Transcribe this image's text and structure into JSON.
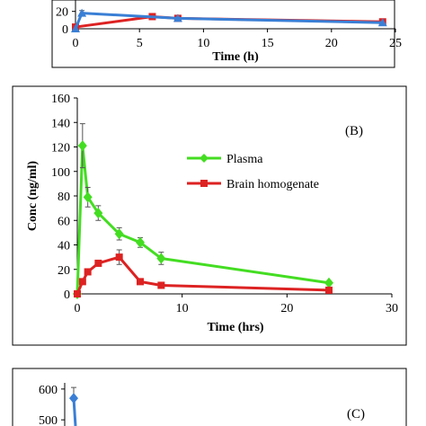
{
  "chart_data": [
    {
      "panel": "A",
      "type": "line",
      "xlabel": "Time (h)",
      "xticks": [
        "0",
        "5",
        "10",
        "15",
        "20",
        "25"
      ],
      "yticks": [
        "0",
        "20"
      ],
      "xlim": [
        0,
        25
      ],
      "ylim": [
        0,
        30
      ],
      "series": [
        {
          "color": "#dd2222",
          "marker": "square",
          "x": [
            0,
            6,
            8,
            24
          ],
          "y": [
            2,
            14,
            12,
            8
          ],
          "err": [
            0,
            2,
            3,
            1
          ]
        },
        {
          "color": "#3a7fd5",
          "marker": "triangle",
          "x": [
            0,
            0.5,
            8,
            24
          ],
          "y": [
            0,
            18,
            12,
            7
          ],
          "err": [
            0,
            3,
            0,
            0
          ]
        }
      ]
    },
    {
      "panel": "B",
      "label": "(B)",
      "type": "line",
      "xlabel": "Time (hrs)",
      "ylabel": "Conc (ng/ml)",
      "xticks": [
        "0",
        "10",
        "20",
        "30"
      ],
      "yticks": [
        "0",
        "20",
        "40",
        "60",
        "80",
        "100",
        "120",
        "140",
        "160"
      ],
      "xlim": [
        0,
        30
      ],
      "ylim": [
        0,
        160
      ],
      "legend_position": "upper-middle",
      "series": [
        {
          "name": "Plasma",
          "color": "#44dd22",
          "marker": "diamond",
          "x": [
            0,
            0.5,
            1,
            2,
            4,
            6,
            8,
            24
          ],
          "y": [
            0,
            121,
            79,
            66,
            49,
            42,
            29,
            9
          ],
          "err": [
            0,
            18,
            8,
            6,
            5,
            4,
            5,
            1
          ]
        },
        {
          "name": "Brain homogenate",
          "color": "#dd2222",
          "marker": "square",
          "x": [
            0,
            0.5,
            1,
            2,
            4,
            6,
            8,
            24
          ],
          "y": [
            0,
            10,
            18,
            25,
            30,
            10,
            7,
            3
          ],
          "err": [
            0,
            1,
            2,
            2,
            6,
            1,
            1,
            0
          ]
        }
      ]
    },
    {
      "panel": "C",
      "label": "(C)",
      "type": "line",
      "yticks": [
        "500",
        "600"
      ],
      "series": [
        {
          "color": "#3a7fd5",
          "marker": "diamond",
          "x": [
            0.5
          ],
          "y": [
            570
          ],
          "err": [
            35
          ]
        }
      ]
    }
  ]
}
